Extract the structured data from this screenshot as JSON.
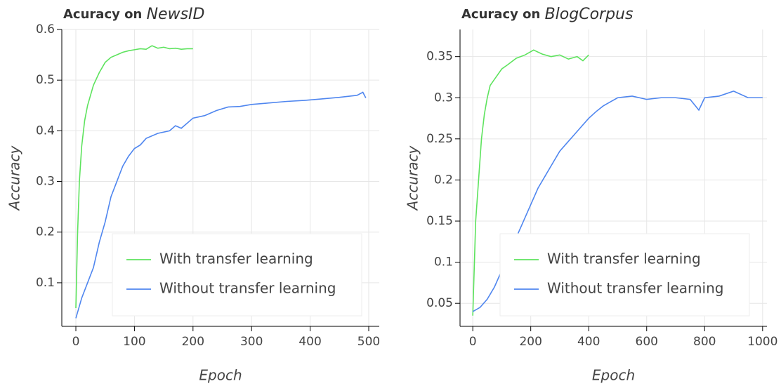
{
  "chart_data": [
    {
      "type": "line",
      "title": "Acuracy on",
      "title_dataset": "NewsID",
      "x_label": "Epoch",
      "y_label": "Accuracy",
      "xlim": [
        -24,
        518
      ],
      "ylim": [
        0.014,
        0.6
      ],
      "xticks": [
        0,
        100,
        200,
        300,
        400,
        500
      ],
      "yticks": [
        0.1,
        0.2,
        0.3,
        0.4,
        0.5,
        0.6
      ],
      "grid": true,
      "legend": "bottom-right",
      "series": [
        {
          "name": "With transfer learning",
          "color": "#5ee35e",
          "x": [
            0,
            3,
            6,
            10,
            15,
            20,
            25,
            30,
            40,
            50,
            60,
            70,
            80,
            90,
            100,
            110,
            120,
            130,
            140,
            150,
            160,
            170,
            180,
            190,
            200
          ],
          "values": [
            0.05,
            0.2,
            0.3,
            0.37,
            0.42,
            0.45,
            0.47,
            0.49,
            0.515,
            0.535,
            0.545,
            0.55,
            0.555,
            0.558,
            0.56,
            0.562,
            0.561,
            0.568,
            0.563,
            0.565,
            0.562,
            0.563,
            0.561,
            0.562,
            0.562
          ]
        },
        {
          "name": "Without transfer learning",
          "color": "#4f86ef",
          "x": [
            0,
            10,
            20,
            30,
            40,
            50,
            60,
            70,
            80,
            90,
            100,
            110,
            120,
            140,
            160,
            170,
            180,
            200,
            220,
            240,
            260,
            280,
            300,
            330,
            360,
            390,
            420,
            450,
            480,
            490,
            495
          ],
          "values": [
            0.03,
            0.07,
            0.1,
            0.13,
            0.18,
            0.22,
            0.27,
            0.3,
            0.33,
            0.35,
            0.365,
            0.372,
            0.385,
            0.395,
            0.4,
            0.41,
            0.405,
            0.425,
            0.43,
            0.44,
            0.447,
            0.448,
            0.452,
            0.455,
            0.458,
            0.46,
            0.463,
            0.466,
            0.47,
            0.476,
            0.465
          ]
        }
      ]
    },
    {
      "type": "line",
      "title": "Acuracy on",
      "title_dataset": "BlogCorpus",
      "x_label": "Epoch",
      "y_label": "Accuracy",
      "xlim": [
        -44,
        1015
      ],
      "ylim": [
        0.022,
        0.383
      ],
      "xticks": [
        0,
        200,
        400,
        600,
        800,
        1000
      ],
      "yticks": [
        0.05,
        0.1,
        0.15,
        0.2,
        0.25,
        0.3,
        0.35
      ],
      "grid": true,
      "legend": "bottom-right",
      "series": [
        {
          "name": "With transfer learning",
          "color": "#5ee35e",
          "x": [
            0,
            10,
            20,
            30,
            40,
            50,
            60,
            80,
            100,
            120,
            150,
            180,
            210,
            240,
            270,
            300,
            330,
            360,
            380,
            400
          ],
          "values": [
            0.035,
            0.15,
            0.2,
            0.25,
            0.28,
            0.3,
            0.315,
            0.325,
            0.335,
            0.34,
            0.348,
            0.352,
            0.358,
            0.353,
            0.35,
            0.352,
            0.347,
            0.35,
            0.345,
            0.352
          ]
        },
        {
          "name": "Without transfer learning",
          "color": "#4f86ef",
          "x": [
            0,
            25,
            50,
            75,
            100,
            125,
            150,
            175,
            200,
            225,
            250,
            275,
            300,
            325,
            350,
            375,
            400,
            425,
            450,
            475,
            500,
            550,
            600,
            650,
            700,
            750,
            780,
            800,
            850,
            900,
            950,
            1000
          ],
          "values": [
            0.04,
            0.045,
            0.055,
            0.07,
            0.09,
            0.11,
            0.13,
            0.15,
            0.17,
            0.19,
            0.205,
            0.22,
            0.235,
            0.245,
            0.255,
            0.265,
            0.275,
            0.283,
            0.29,
            0.295,
            0.3,
            0.302,
            0.298,
            0.3,
            0.3,
            0.298,
            0.285,
            0.3,
            0.302,
            0.308,
            0.3,
            0.3
          ]
        }
      ]
    }
  ]
}
